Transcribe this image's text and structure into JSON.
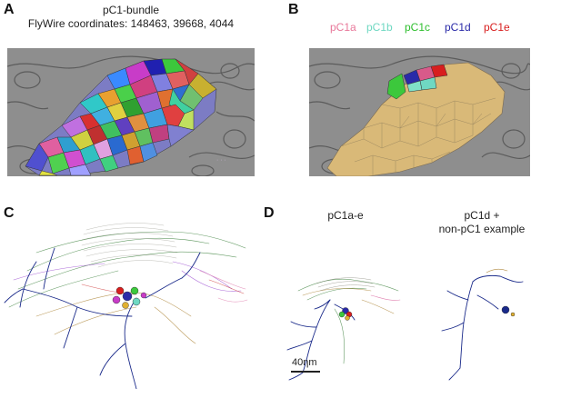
{
  "panels": {
    "a": {
      "letter": "A",
      "title_line1": "pC1-bundle",
      "title_line2": "FlyWire coordinates: 148463, 39668, 4044"
    },
    "b": {
      "letter": "B",
      "legend": [
        {
          "label": "pC1a",
          "color": "#e8789a"
        },
        {
          "label": "pC1b",
          "color": "#6fd8c2"
        },
        {
          "label": "pC1c",
          "color": "#2fbf2f"
        },
        {
          "label": "pC1d",
          "color": "#2a2aa8"
        },
        {
          "label": "pC1e",
          "color": "#d81e1e"
        }
      ]
    },
    "c": {
      "letter": "C"
    },
    "d": {
      "letter": "D",
      "label_left": "pC1a-e",
      "label_right_line1": "pC1d +",
      "label_right_line2": "non-pC1 example",
      "scale_bar_label": "40ηm"
    }
  },
  "colors": {
    "em_background": "#8c8c8c",
    "pc1_bundle_fill": "#d9b978",
    "neuron_blue": "#1a2a8a"
  }
}
